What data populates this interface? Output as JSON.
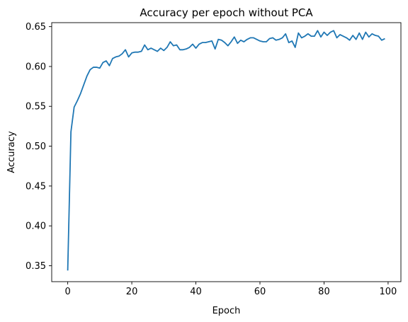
{
  "chart_data": {
    "type": "line",
    "title": "Accuracy per epoch without PCA",
    "xlabel": "Epoch",
    "ylabel": "Accuracy",
    "xlim": [
      -5,
      104
    ],
    "ylim": [
      0.33,
      0.655
    ],
    "xticks": [
      0,
      20,
      40,
      60,
      80,
      100
    ],
    "xtick_labels": [
      "0",
      "20",
      "40",
      "60",
      "80",
      "100"
    ],
    "yticks": [
      0.35,
      0.4,
      0.45,
      0.5,
      0.55,
      0.6,
      0.65
    ],
    "ytick_labels": [
      "0.35",
      "0.40",
      "0.45",
      "0.50",
      "0.55",
      "0.60",
      "0.65"
    ],
    "grid": false,
    "series": [
      {
        "color": "#1f77b4",
        "x": [
          0,
          1,
          2,
          3,
          4,
          5,
          6,
          7,
          8,
          9,
          10,
          11,
          12,
          13,
          14,
          15,
          16,
          17,
          18,
          19,
          20,
          21,
          22,
          23,
          24,
          25,
          26,
          27,
          28,
          29,
          30,
          31,
          32,
          33,
          34,
          35,
          36,
          37,
          38,
          39,
          40,
          41,
          42,
          43,
          44,
          45,
          46,
          47,
          48,
          49,
          50,
          51,
          52,
          53,
          54,
          55,
          56,
          57,
          58,
          59,
          60,
          61,
          62,
          63,
          64,
          65,
          66,
          67,
          68,
          69,
          70,
          71,
          72,
          73,
          74,
          75,
          76,
          77,
          78,
          79,
          80,
          81,
          82,
          83,
          84,
          85,
          86,
          87,
          88,
          89,
          90,
          91,
          92,
          93,
          94,
          95,
          96,
          97,
          98,
          99
        ],
        "y": [
          0.344,
          0.518,
          0.549,
          0.557,
          0.566,
          0.577,
          0.588,
          0.596,
          0.599,
          0.599,
          0.598,
          0.605,
          0.607,
          0.601,
          0.61,
          0.612,
          0.613,
          0.616,
          0.621,
          0.612,
          0.617,
          0.618,
          0.618,
          0.619,
          0.627,
          0.621,
          0.623,
          0.621,
          0.619,
          0.623,
          0.62,
          0.624,
          0.631,
          0.626,
          0.627,
          0.621,
          0.621,
          0.622,
          0.624,
          0.628,
          0.623,
          0.628,
          0.63,
          0.63,
          0.631,
          0.632,
          0.622,
          0.634,
          0.633,
          0.63,
          0.626,
          0.631,
          0.637,
          0.629,
          0.633,
          0.631,
          0.634,
          0.636,
          0.636,
          0.634,
          0.632,
          0.631,
          0.631,
          0.635,
          0.636,
          0.633,
          0.634,
          0.636,
          0.641,
          0.63,
          0.632,
          0.624,
          0.642,
          0.636,
          0.638,
          0.641,
          0.638,
          0.638,
          0.645,
          0.637,
          0.643,
          0.639,
          0.643,
          0.645,
          0.636,
          0.64,
          0.638,
          0.636,
          0.633,
          0.639,
          0.634,
          0.642,
          0.634,
          0.643,
          0.637,
          0.641,
          0.639,
          0.638,
          0.633,
          0.635
        ]
      }
    ]
  }
}
